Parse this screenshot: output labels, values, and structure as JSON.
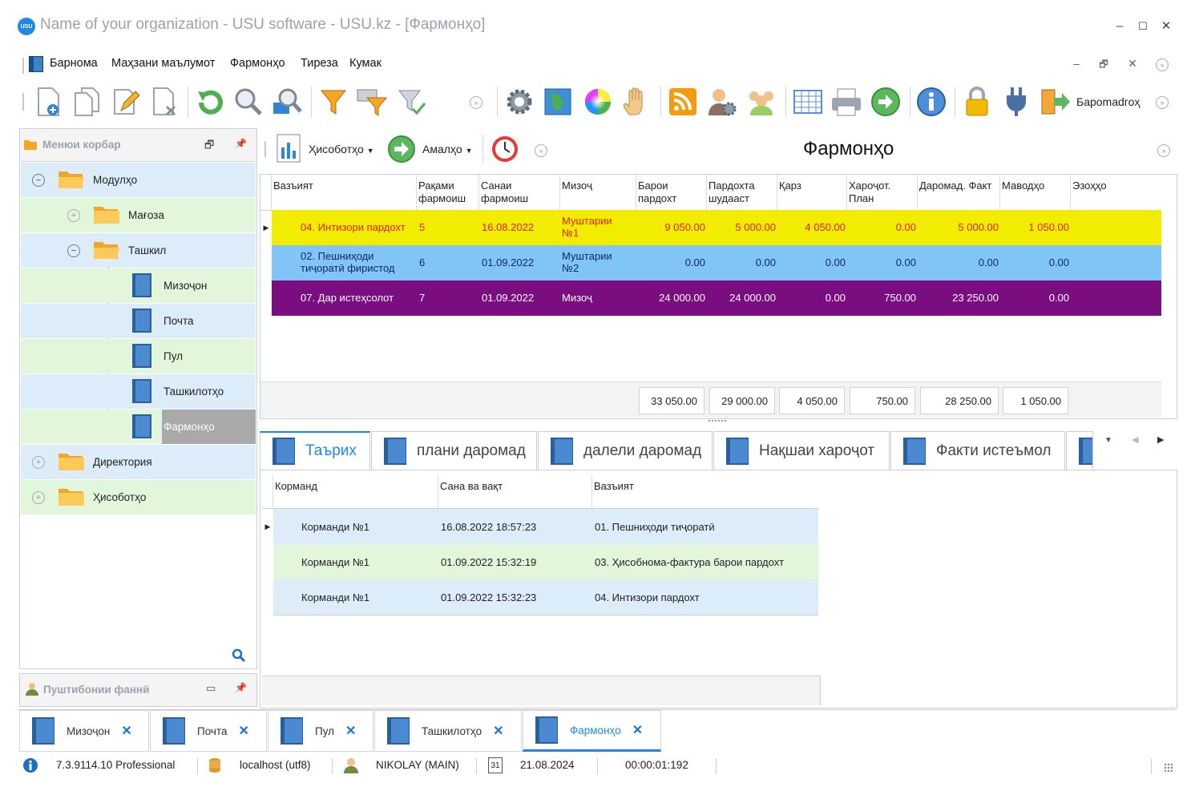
{
  "window": {
    "title": "Name of your organization - USU software - USU.kz - [Фармонҳо]",
    "logo_text": "USU",
    "min": "–",
    "max": "☐",
    "close": "✕"
  },
  "menu": {
    "items": [
      "Барнома",
      "Маҳзани маълумот",
      "Фармонҳо",
      "Тиреза",
      "Кумак"
    ],
    "mdi_min": "–",
    "mdi_restore": "🗗",
    "mdi_close": "✕"
  },
  "toolbar": {
    "exit_label": "Бароmadгоҳ"
  },
  "nav": {
    "header": "Менюи корбар",
    "items": [
      {
        "label": "Модулҳо"
      },
      {
        "label": "Мағоза"
      },
      {
        "label": "Ташкил"
      },
      {
        "label": "Мизоҷон"
      },
      {
        "label": "Почта"
      },
      {
        "label": "Пул"
      },
      {
        "label": "Ташкилотҳо"
      },
      {
        "label": "Фармонҳо"
      },
      {
        "label": "Директория"
      },
      {
        "label": "Ҳисоботҳо"
      }
    ],
    "bottom_header": "Пуштибонии фаннӣ"
  },
  "main": {
    "reports_label": "Ҳисоботҳо",
    "actions_label": "Амалҳо",
    "page_title": "Фармонҳо"
  },
  "grid1": {
    "columns": [
      "Вазъият",
      "Рақами фармоиш",
      "Санаи фармоиш",
      "Мизоҷ",
      "Барои пардохт",
      "Пардохта шудааст",
      "Қарз",
      "Хароҷот. План",
      "Даромад. Факт",
      "Маводҳо",
      "Эзоҳҳо"
    ],
    "rows": [
      {
        "status": "04. Интизори пардохт",
        "num": "5",
        "date": "16.08.2022",
        "client": "Муштарии №1",
        "to_pay": "9 050.00",
        "paid": "5 000.00",
        "debt": "4 050.00",
        "plan": "0.00",
        "fact": "5 000.00",
        "materials": "1 050.00",
        "notes": ""
      },
      {
        "status": "02. Пешниҳоди тиҷоратӣ фиристод",
        "num": "6",
        "date": "01.09.2022",
        "client": "Муштарии №2",
        "to_pay": "0.00",
        "paid": "0.00",
        "debt": "0.00",
        "plan": "0.00",
        "fact": "0.00",
        "materials": "0.00",
        "notes": ""
      },
      {
        "status": "07. Дар истеҳсолот",
        "num": "7",
        "date": "01.09.2022",
        "client": "Мизоҷ",
        "to_pay": "24 000.00",
        "paid": "24 000.00",
        "debt": "0.00",
        "plan": "750.00",
        "fact": "23 250.00",
        "materials": "0.00",
        "notes": ""
      }
    ],
    "totals": {
      "to_pay": "33 050.00",
      "paid": "29 000.00",
      "debt": "4 050.00",
      "plan": "750.00",
      "fact": "28 250.00",
      "materials": "1 050.00"
    },
    "row_colors": [
      "#f2ec00",
      "#80c4f8",
      "#7a0e80"
    ],
    "row_text_colors": [
      "#e0231b",
      "#0d2a66",
      "#ffffff"
    ]
  },
  "tabs": [
    "Таърих",
    "плани даромад",
    "далели даромад",
    "Нақшаи хароҷот",
    "Факти истеъмол"
  ],
  "grid2": {
    "columns": [
      "Корманд",
      "Сана ва вақт",
      "Вазъият"
    ],
    "rows": [
      {
        "employee": "Корманди №1",
        "datetime": "16.08.2022 18:57:23",
        "status": "01. Пешниҳоди тиҷоратӣ"
      },
      {
        "employee": "Корманди №1",
        "datetime": "01.09.2022 15:32:19",
        "status": "03. Ҳисобнома-фактура барои пардохт"
      },
      {
        "employee": "Корманди №1",
        "datetime": "01.09.2022 15:32:23",
        "status": "04. Интизори пардохт"
      }
    ]
  },
  "doc_tabs": [
    "Мизоҷон",
    "Почта",
    "Пул",
    "Ташкилотҳо",
    "Фармонҳо"
  ],
  "status": {
    "version": "7.3.9114.10 Professional",
    "db": "localhost (utf8)",
    "user": "NIKOLAY (MAIN)",
    "calendar_day": "31",
    "date": "21.08.2024",
    "timer": "00:00:01:192"
  }
}
